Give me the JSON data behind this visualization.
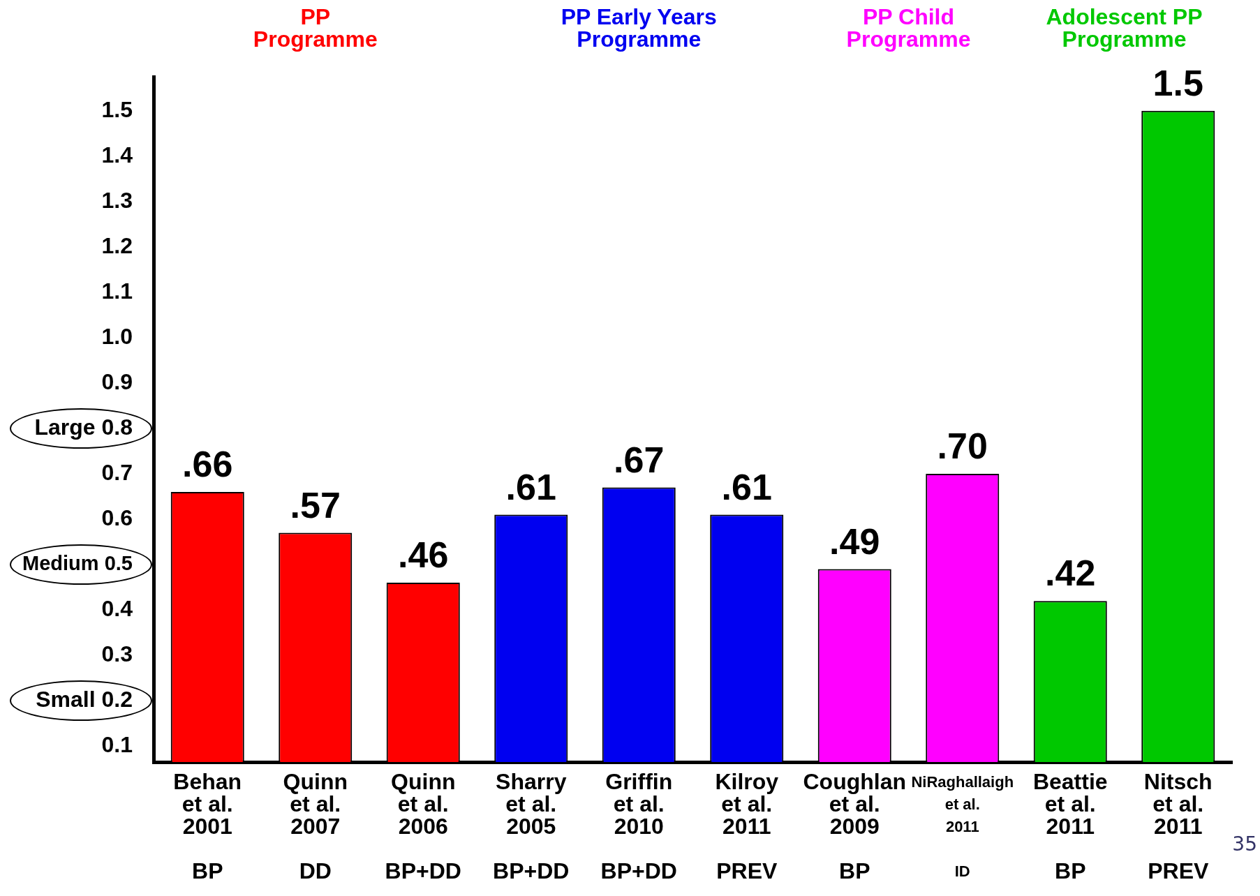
{
  "chart_data": {
    "type": "bar",
    "categories": [
      "Behan\net al.\n2001\n\nBP",
      "Quinn\net al.\n2007\n\nDD",
      "Quinn\net al.\n2006\n\nBP+DD",
      "Sharry\net al.\n2005\n\nBP+DD",
      "Griffin\net al.\n2010\n\nBP+DD",
      "Kilroy\net al.\n2011\n\nPREV",
      "Coughlan\net al.\n2009\n\nBP",
      "NiRaghallaigh\net al.\n2011\n\nID",
      "Beattie\net al.\n2011\n\nBP",
      "Nitsch\net al.\n2011\n\nPREV"
    ],
    "series": [
      {
        "name": "PP Programme",
        "color": "#ff0000",
        "values": [
          0.66,
          0.57,
          0.46,
          null,
          null,
          null,
          null,
          null,
          null,
          null
        ],
        "value_labels": [
          ".66",
          ".57",
          ".46",
          null,
          null,
          null,
          null,
          null,
          null,
          null
        ]
      },
      {
        "name": "PP Early Years Programme",
        "color": "#0000f0",
        "values": [
          null,
          null,
          null,
          0.61,
          0.67,
          0.61,
          null,
          null,
          null,
          null
        ],
        "value_labels": [
          null,
          null,
          null,
          ".61",
          ".67",
          ".61",
          null,
          null,
          null,
          null
        ]
      },
      {
        "name": "PP Child Programme",
        "color": "#ff00ff",
        "values": [
          null,
          null,
          null,
          null,
          null,
          null,
          0.49,
          0.7,
          null,
          null
        ],
        "value_labels": [
          null,
          null,
          null,
          null,
          null,
          null,
          ".49",
          ".70",
          null,
          null
        ]
      },
      {
        "name": "Adolescent PP Programme",
        "color": "#00c800",
        "values": [
          null,
          null,
          null,
          null,
          null,
          null,
          null,
          null,
          0.42,
          1.5
        ],
        "value_labels": [
          null,
          null,
          null,
          null,
          null,
          null,
          null,
          null,
          ".42",
          "1.5"
        ]
      }
    ],
    "ylim": [
      0.065,
      1.575
    ],
    "yticks": [
      0.1,
      {
        "value": 0.2,
        "label": "Small 0.2"
      },
      0.3,
      0.4,
      {
        "value": 0.5,
        "label": "Medium 0.5"
      },
      0.6,
      0.7,
      {
        "value": 0.8,
        "label": "Large 0.8"
      },
      0.9,
      {
        "value": 1,
        "label": "1.0"
      },
      1.1,
      1.2,
      1.3,
      1.4,
      1.5
    ],
    "grid": false,
    "legend": "top",
    "annotations": [
      "35"
    ]
  }
}
